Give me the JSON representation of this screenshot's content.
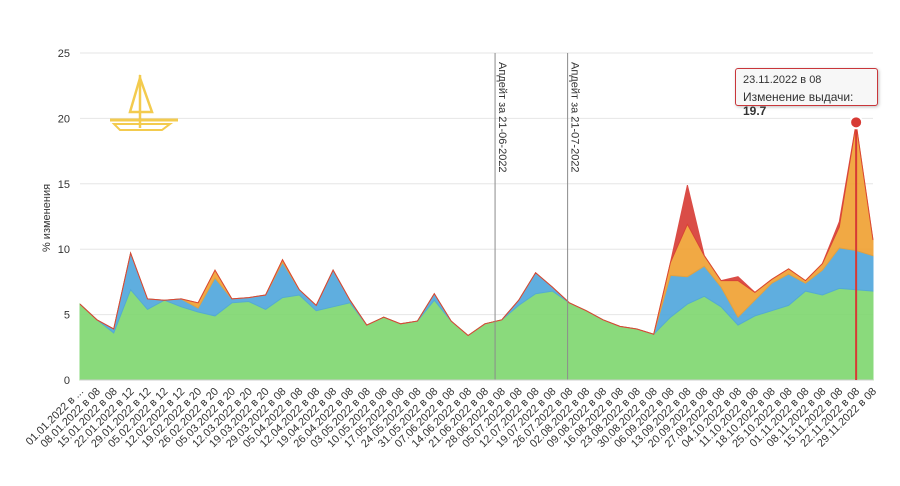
{
  "chart_data": {
    "type": "area",
    "ylabel": "% изменения",
    "ylim": [
      0,
      25
    ],
    "yticks": [
      "0",
      "5",
      "10",
      "15",
      "20",
      "25"
    ],
    "grid": "horizontal",
    "x_labels": [
      "01.01.2022 в ...",
      "08.01.2022 в 08",
      "15.01.2022 в 08",
      "22.01.2022 в 12",
      "29.01.2022 в 12",
      "05.02.2022 в 12",
      "12.02.2022 в 12",
      "19.02.2022 в 20",
      "26.02.2022 в 20",
      "05.03.2022 в 20",
      "12.03.2022 в 20",
      "19.03.2022 в 20",
      "29.03.2022 в 08",
      "05.04.2022 в 08",
      "12.04.2022 в 08",
      "19.04.2022 в 08",
      "26.04.2022 в 08",
      "03.05.2022 в 08",
      "10.05.2022 в 08",
      "17.05.2022 в 08",
      "24.05.2022 в 08",
      "31.05.2022 в 08",
      "07.06.2022 в 08",
      "14.06.2022 в 08",
      "21.06.2022 в 08",
      "28.06.2022 в 08",
      "05.07.2022 в 08",
      "12.07.2022 в 08",
      "19.07.2022 в 08",
      "26.07.2022 в 08",
      "02.08.2022 в 08",
      "09.08.2022 в 08",
      "16.08.2022 в 08",
      "23.08.2022 в 08",
      "30.08.2022 в 08",
      "06.09.2022 в 08",
      "13.09.2022 в 08",
      "20.09.2022 в 08",
      "27.09.2022 в 08",
      "04.10.2022 в 08",
      "11.10.2022 в 08",
      "18.10.2022 в 08",
      "25.10.2022 в 08",
      "01.11.2022 в 08",
      "08.11.2022 в 08",
      "15.11.2022 в 08",
      "22.11.2022 в 08",
      "29.11.2022 в 08"
    ],
    "series": [
      {
        "color": "#7ed66e",
        "values": [
          5.8,
          4.6,
          3.6,
          6.9,
          5.4,
          6.1,
          5.6,
          5.2,
          4.9,
          5.9,
          6.0,
          5.4,
          6.3,
          6.5,
          5.3,
          5.6,
          5.9,
          4.2,
          4.8,
          4.3,
          4.5,
          6.1,
          4.5,
          3.4,
          4.3,
          4.6,
          5.7,
          6.6,
          6.8,
          5.9,
          5.3,
          4.6,
          4.1,
          3.9,
          3.5,
          4.8,
          5.8,
          6.4,
          5.6,
          4.2,
          4.9,
          5.3,
          5.7,
          6.8,
          6.5,
          7.0,
          6.9,
          6.8
        ]
      },
      {
        "color": "#4ea6dc",
        "values": [
          0,
          0,
          0.3,
          2.8,
          0.8,
          0,
          0.6,
          0.3,
          2.9,
          0.3,
          0.3,
          1.1,
          2.7,
          0.4,
          0.4,
          2.8,
          0.2,
          0,
          0,
          0,
          0,
          0.5,
          0,
          0,
          0,
          0,
          0.4,
          1.6,
          0.3,
          0,
          0,
          0,
          0,
          0,
          0,
          3.2,
          2.1,
          2.3,
          1.5,
          0.6,
          1.2,
          2.1,
          2.4,
          0.6,
          1.9,
          3.1,
          3.0,
          2.7
        ]
      },
      {
        "color": "#f0a030",
        "values": [
          0,
          0,
          0,
          0,
          0,
          0,
          0,
          0.4,
          0.6,
          0,
          0,
          0,
          0.2,
          0,
          0,
          0,
          0,
          0,
          0,
          0,
          0,
          0,
          0,
          0,
          0,
          0,
          0,
          0,
          0,
          0,
          0,
          0,
          0,
          0,
          0,
          1.0,
          4.0,
          0.8,
          0.5,
          2.8,
          0.6,
          0.3,
          0.4,
          0.2,
          0.5,
          1.6,
          9.7,
          1.2
        ]
      },
      {
        "color": "#d73a34",
        "values": [
          0,
          0,
          0,
          0,
          0,
          0,
          0,
          0,
          0,
          0,
          0,
          0,
          0,
          0,
          0,
          0,
          0,
          0,
          0,
          0,
          0,
          0,
          0,
          0,
          0,
          0,
          0,
          0,
          0,
          0,
          0,
          0,
          0,
          0,
          0,
          0,
          3.0,
          0,
          0,
          0.3,
          0,
          0,
          0,
          0,
          0,
          0.4,
          0,
          0
        ]
      }
    ],
    "annotation_lines_label_prefix": "Апдейт за",
    "annotations": [
      {
        "label": "Апдейт за 21-06-2022",
        "x_index": 24.6
      },
      {
        "label": "Апдейт за 21-07-2022",
        "x_index": 28.9
      }
    ],
    "tooltip": {
      "date": "23.11.2022 в 08",
      "label": "Изменение выдачи:",
      "value": "19.7"
    }
  },
  "colors": {
    "grid": "#e6e6e6",
    "annotation_line": "#8c8c8c",
    "tooltip_border": "#c9363a",
    "logo": "#f2c230"
  }
}
